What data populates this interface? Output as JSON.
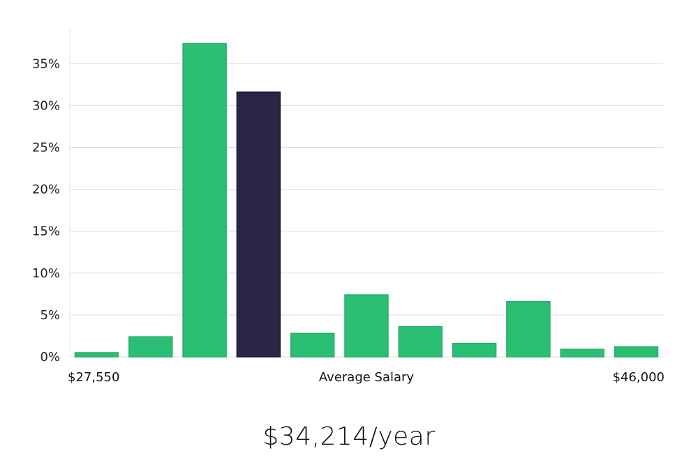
{
  "chart_data": {
    "type": "bar",
    "title": "",
    "xlabel": "Average Salary",
    "ylabel": "",
    "x_range_labels": {
      "min": "$27,550",
      "max": "$46,000"
    },
    "y_ticks": [
      "0%",
      "5%",
      "10%",
      "15%",
      "20%",
      "25%",
      "30%",
      "35%"
    ],
    "y_tick_values": [
      0,
      5,
      10,
      15,
      20,
      25,
      30,
      35
    ],
    "ylim": [
      0,
      39
    ],
    "grid": true,
    "values": [
      0.5,
      2.4,
      37.4,
      31.6,
      2.8,
      7.4,
      3.6,
      1.6,
      6.6,
      0.9,
      1.2
    ],
    "highlight_index": 3,
    "colors": {
      "bar": "#2bbf76",
      "bar_border": "#25ad6a",
      "highlight": "#2a2746",
      "highlight_border": "#1a1838",
      "grid": "#dddddd",
      "axis": "#e6e6e6"
    }
  },
  "summary": {
    "average_salary": "$34,214/year"
  }
}
